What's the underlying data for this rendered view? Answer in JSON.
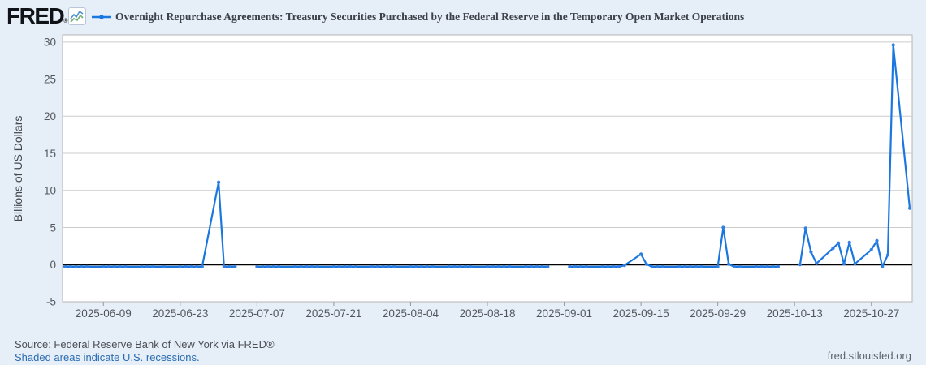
{
  "header": {
    "logo_text": "FRED",
    "registered_mark": "®"
  },
  "footer": {
    "source_text": "Source: Federal Reserve Bank of New York via FRED®",
    "recession_note": "Shaded areas indicate U.S. recessions.",
    "site_link": "fred.stlouisfed.org"
  },
  "chart_data": {
    "type": "line",
    "title": "Overnight Repurchase Agreements: Treasury Securities Purchased by the Federal Reserve in the Temporary Open Market Operations",
    "ylabel": "Billions of US Dollars",
    "ylim": [
      -5,
      30.8
    ],
    "yticks": [
      30,
      25,
      20,
      15,
      10,
      5,
      0,
      -5
    ],
    "xtick_labels": [
      "2025-06-09",
      "2025-06-23",
      "2025-07-07",
      "2025-07-21",
      "2025-08-04",
      "2025-08-18",
      "2025-09-01",
      "2025-09-15",
      "2025-09-29",
      "2025-10-13",
      "2025-10-27"
    ],
    "x_range": [
      "2025-06-02",
      "2025-11-03"
    ],
    "grid": "horizontal-only",
    "legend_position": "top",
    "frequency": "business-daily",
    "colors": {
      "line": "#1b77e0",
      "marker": "#2f80e4",
      "grid": "#cccccc",
      "zero_line": "#000000",
      "plot_border": "#b5b5b5",
      "plot_bg": "#ffffff",
      "page_bg": "#e6eef8"
    },
    "points": [
      [
        "2025-06-02",
        -0.3
      ],
      [
        "2025-06-03",
        -0.3
      ],
      [
        "2025-06-04",
        -0.3
      ],
      [
        "2025-06-05",
        -0.3
      ],
      [
        "2025-06-06",
        -0.3
      ],
      [
        "2025-06-09",
        -0.3
      ],
      [
        "2025-06-10",
        -0.3
      ],
      [
        "2025-06-11",
        -0.3
      ],
      [
        "2025-06-12",
        -0.3
      ],
      [
        "2025-06-13",
        -0.3
      ],
      [
        "2025-06-16",
        -0.3
      ],
      [
        "2025-06-17",
        -0.3
      ],
      [
        "2025-06-18",
        -0.3
      ],
      [
        "2025-06-20",
        -0.3
      ],
      [
        "2025-06-23",
        -0.3
      ],
      [
        "2025-06-24",
        -0.3
      ],
      [
        "2025-06-25",
        -0.3
      ],
      [
        "2025-06-26",
        -0.3
      ],
      [
        "2025-06-27",
        -0.3
      ],
      [
        "2025-06-30",
        11.1
      ],
      [
        "2025-07-01",
        -0.3
      ],
      [
        "2025-07-02",
        -0.3
      ],
      [
        "2025-07-03",
        -0.3
      ],
      [
        "2025-07-07",
        -0.3
      ],
      [
        "2025-07-08",
        -0.3
      ],
      [
        "2025-07-09",
        -0.3
      ],
      [
        "2025-07-10",
        -0.3
      ],
      [
        "2025-07-11",
        -0.3
      ],
      [
        "2025-07-14",
        -0.3
      ],
      [
        "2025-07-15",
        -0.3
      ],
      [
        "2025-07-16",
        -0.3
      ],
      [
        "2025-07-17",
        -0.3
      ],
      [
        "2025-07-18",
        -0.3
      ],
      [
        "2025-07-21",
        -0.3
      ],
      [
        "2025-07-22",
        -0.3
      ],
      [
        "2025-07-23",
        -0.3
      ],
      [
        "2025-07-24",
        -0.3
      ],
      [
        "2025-07-25",
        -0.3
      ],
      [
        "2025-07-28",
        -0.3
      ],
      [
        "2025-07-29",
        -0.3
      ],
      [
        "2025-07-30",
        -0.3
      ],
      [
        "2025-07-31",
        -0.3
      ],
      [
        "2025-08-01",
        -0.3
      ],
      [
        "2025-08-04",
        -0.3
      ],
      [
        "2025-08-05",
        -0.3
      ],
      [
        "2025-08-06",
        -0.3
      ],
      [
        "2025-08-07",
        -0.3
      ],
      [
        "2025-08-08",
        -0.3
      ],
      [
        "2025-08-11",
        -0.3
      ],
      [
        "2025-08-12",
        -0.3
      ],
      [
        "2025-08-13",
        -0.3
      ],
      [
        "2025-08-14",
        -0.3
      ],
      [
        "2025-08-15",
        -0.3
      ],
      [
        "2025-08-18",
        -0.3
      ],
      [
        "2025-08-19",
        -0.3
      ],
      [
        "2025-08-20",
        -0.3
      ],
      [
        "2025-08-21",
        -0.3
      ],
      [
        "2025-08-22",
        -0.3
      ],
      [
        "2025-08-25",
        -0.3
      ],
      [
        "2025-08-26",
        -0.3
      ],
      [
        "2025-08-27",
        -0.3
      ],
      [
        "2025-08-28",
        -0.3
      ],
      [
        "2025-08-29",
        -0.3
      ],
      [
        "2025-09-02",
        -0.3
      ],
      [
        "2025-09-03",
        -0.3
      ],
      [
        "2025-09-04",
        -0.3
      ],
      [
        "2025-09-05",
        -0.3
      ],
      [
        "2025-09-08",
        -0.3
      ],
      [
        "2025-09-09",
        -0.3
      ],
      [
        "2025-09-10",
        -0.3
      ],
      [
        "2025-09-11",
        -0.3
      ],
      [
        "2025-09-12",
        -0.1
      ],
      [
        "2025-09-15",
        1.4
      ],
      [
        "2025-09-16",
        0.05
      ],
      [
        "2025-09-17",
        -0.3
      ],
      [
        "2025-09-18",
        -0.3
      ],
      [
        "2025-09-19",
        -0.3
      ],
      [
        "2025-09-22",
        -0.3
      ],
      [
        "2025-09-23",
        -0.3
      ],
      [
        "2025-09-24",
        -0.3
      ],
      [
        "2025-09-25",
        -0.3
      ],
      [
        "2025-09-26",
        -0.3
      ],
      [
        "2025-09-29",
        -0.3
      ],
      [
        "2025-09-30",
        5.0
      ],
      [
        "2025-10-01",
        0.05
      ],
      [
        "2025-10-02",
        -0.3
      ],
      [
        "2025-10-03",
        -0.3
      ],
      [
        "2025-10-06",
        -0.3
      ],
      [
        "2025-10-07",
        -0.3
      ],
      [
        "2025-10-08",
        -0.3
      ],
      [
        "2025-10-09",
        -0.3
      ],
      [
        "2025-10-10",
        -0.3
      ],
      [
        "2025-10-14",
        0.0
      ],
      [
        "2025-10-15",
        4.9
      ],
      [
        "2025-10-16",
        1.7
      ],
      [
        "2025-10-17",
        0.15
      ],
      [
        "2025-10-20",
        2.2
      ],
      [
        "2025-10-21",
        2.9
      ],
      [
        "2025-10-22",
        0.1
      ],
      [
        "2025-10-23",
        3.0
      ],
      [
        "2025-10-24",
        0.1
      ],
      [
        "2025-10-27",
        2.0
      ],
      [
        "2025-10-28",
        3.2
      ],
      [
        "2025-10-29",
        -0.3
      ],
      [
        "2025-10-30",
        1.3
      ],
      [
        "2025-10-31",
        29.6
      ],
      [
        "2025-11-03",
        7.6
      ]
    ]
  }
}
